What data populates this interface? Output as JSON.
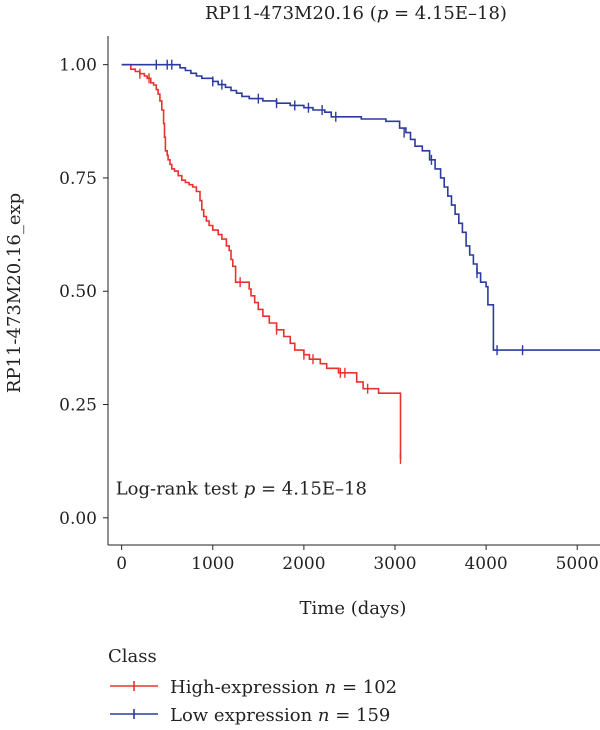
{
  "chart_data": {
    "type": "line",
    "title_prefix": "RP11-473M20.16 (",
    "title_p": "p",
    "title_suffix": " = 4.15E–18)",
    "xlabel": "Time (days)",
    "ylabel": "RP11-473M20.16_exp",
    "xlim": [
      -150,
      5250
    ],
    "ylim": [
      -0.06,
      1.05
    ],
    "x_ticks": [
      0,
      1000,
      2000,
      3000,
      4000,
      5000
    ],
    "x_tick_labels": [
      "0",
      "1000",
      "2000",
      "3000",
      "4000",
      "5000"
    ],
    "y_ticks": [
      0.0,
      0.25,
      0.5,
      0.75,
      1.0
    ],
    "y_tick_labels": [
      "0.00",
      "0.25",
      "0.50",
      "0.75",
      "1.00"
    ],
    "grid": false,
    "legend_position": "bottom-left",
    "legend_title": "Class",
    "annotation": {
      "prefix": "Log-rank test ",
      "p": "p",
      "suffix": " = 4.15E–18",
      "x": 0,
      "y": 0.065
    },
    "series": [
      {
        "name": "High-expression",
        "legend_prefix": "High-expression ",
        "legend_n_label": "n",
        "legend_n_value": " = 102",
        "color": "#e8322e",
        "steps": [
          [
            0,
            1.0
          ],
          [
            100,
            0.99
          ],
          [
            150,
            0.985
          ],
          [
            200,
            0.98
          ],
          [
            250,
            0.975
          ],
          [
            280,
            0.97
          ],
          [
            320,
            0.96
          ],
          [
            350,
            0.955
          ],
          [
            380,
            0.945
          ],
          [
            400,
            0.935
          ],
          [
            420,
            0.92
          ],
          [
            440,
            0.9
          ],
          [
            460,
            0.87
          ],
          [
            470,
            0.84
          ],
          [
            480,
            0.81
          ],
          [
            500,
            0.8
          ],
          [
            510,
            0.79
          ],
          [
            530,
            0.78
          ],
          [
            550,
            0.77
          ],
          [
            580,
            0.765
          ],
          [
            620,
            0.755
          ],
          [
            660,
            0.745
          ],
          [
            700,
            0.74
          ],
          [
            740,
            0.735
          ],
          [
            780,
            0.73
          ],
          [
            820,
            0.72
          ],
          [
            860,
            0.7
          ],
          [
            880,
            0.68
          ],
          [
            900,
            0.665
          ],
          [
            930,
            0.655
          ],
          [
            960,
            0.645
          ],
          [
            1000,
            0.635
          ],
          [
            1060,
            0.625
          ],
          [
            1100,
            0.615
          ],
          [
            1150,
            0.6
          ],
          [
            1180,
            0.59
          ],
          [
            1200,
            0.57
          ],
          [
            1220,
            0.555
          ],
          [
            1250,
            0.52
          ],
          [
            1350,
            0.52
          ],
          [
            1400,
            0.505
          ],
          [
            1420,
            0.49
          ],
          [
            1460,
            0.475
          ],
          [
            1500,
            0.46
          ],
          [
            1550,
            0.445
          ],
          [
            1620,
            0.43
          ],
          [
            1700,
            0.415
          ],
          [
            1780,
            0.4
          ],
          [
            1850,
            0.385
          ],
          [
            1900,
            0.37
          ],
          [
            2000,
            0.36
          ],
          [
            2060,
            0.35
          ],
          [
            2180,
            0.34
          ],
          [
            2250,
            0.33
          ],
          [
            2380,
            0.32
          ],
          [
            2580,
            0.3
          ],
          [
            2650,
            0.285
          ],
          [
            2820,
            0.275
          ],
          [
            3060,
            0.13
          ]
        ],
        "end_x": 3060,
        "end_y": 0.13,
        "censor": [
          [
            200,
            0.98
          ],
          [
            300,
            0.97
          ],
          [
            1300,
            0.52
          ],
          [
            1700,
            0.415
          ],
          [
            2000,
            0.36
          ],
          [
            2100,
            0.35
          ],
          [
            2400,
            0.32
          ],
          [
            2450,
            0.32
          ],
          [
            2700,
            0.285
          ],
          [
            3060,
            0.13
          ]
        ]
      },
      {
        "name": "Low expression",
        "legend_prefix": "Low expression ",
        "legend_n_label": "n",
        "legend_n_value": " = 159",
        "color": "#2b3c9e",
        "steps": [
          [
            0,
            1.0
          ],
          [
            640,
            0.993
          ],
          [
            700,
            0.987
          ],
          [
            760,
            0.981
          ],
          [
            820,
            0.975
          ],
          [
            880,
            0.97
          ],
          [
            1000,
            0.963
          ],
          [
            1060,
            0.956
          ],
          [
            1140,
            0.95
          ],
          [
            1200,
            0.943
          ],
          [
            1260,
            0.937
          ],
          [
            1320,
            0.93
          ],
          [
            1400,
            0.925
          ],
          [
            1550,
            0.92
          ],
          [
            1700,
            0.915
          ],
          [
            1850,
            0.91
          ],
          [
            2000,
            0.905
          ],
          [
            2100,
            0.9
          ],
          [
            2230,
            0.895
          ],
          [
            2300,
            0.885
          ],
          [
            2630,
            0.88
          ],
          [
            2900,
            0.875
          ],
          [
            3050,
            0.86
          ],
          [
            3120,
            0.85
          ],
          [
            3170,
            0.835
          ],
          [
            3220,
            0.82
          ],
          [
            3300,
            0.81
          ],
          [
            3380,
            0.79
          ],
          [
            3440,
            0.77
          ],
          [
            3500,
            0.75
          ],
          [
            3540,
            0.73
          ],
          [
            3580,
            0.71
          ],
          [
            3620,
            0.69
          ],
          [
            3660,
            0.67
          ],
          [
            3700,
            0.65
          ],
          [
            3740,
            0.63
          ],
          [
            3780,
            0.6
          ],
          [
            3820,
            0.58
          ],
          [
            3860,
            0.56
          ],
          [
            3900,
            0.54
          ],
          [
            3940,
            0.52
          ],
          [
            4000,
            0.51
          ],
          [
            4020,
            0.47
          ],
          [
            4080,
            0.37
          ]
        ],
        "end_x": 5250,
        "end_y": 0.37,
        "censor": [
          [
            380,
            1.0
          ],
          [
            500,
            1.0
          ],
          [
            550,
            1.0
          ],
          [
            1000,
            0.963
          ],
          [
            1100,
            0.956
          ],
          [
            1500,
            0.925
          ],
          [
            1700,
            0.915
          ],
          [
            1900,
            0.91
          ],
          [
            2050,
            0.905
          ],
          [
            2200,
            0.9
          ],
          [
            2350,
            0.885
          ],
          [
            3100,
            0.85
          ],
          [
            3400,
            0.79
          ],
          [
            3900,
            0.54
          ],
          [
            4120,
            0.37
          ],
          [
            4400,
            0.37
          ]
        ]
      }
    ]
  }
}
